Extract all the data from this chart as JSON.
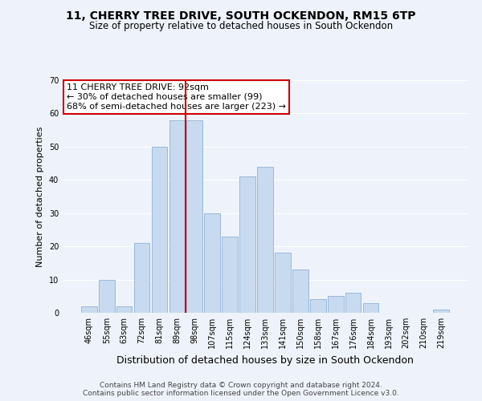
{
  "title": "11, CHERRY TREE DRIVE, SOUTH OCKENDON, RM15 6TP",
  "subtitle": "Size of property relative to detached houses in South Ockendon",
  "xlabel": "Distribution of detached houses by size in South Ockendon",
  "ylabel": "Number of detached properties",
  "bar_labels": [
    "46sqm",
    "55sqm",
    "63sqm",
    "72sqm",
    "81sqm",
    "89sqm",
    "98sqm",
    "107sqm",
    "115sqm",
    "124sqm",
    "133sqm",
    "141sqm",
    "150sqm",
    "158sqm",
    "167sqm",
    "176sqm",
    "184sqm",
    "193sqm",
    "202sqm",
    "210sqm",
    "219sqm"
  ],
  "bar_values": [
    2,
    10,
    2,
    21,
    50,
    58,
    58,
    30,
    23,
    41,
    44,
    18,
    13,
    4,
    5,
    6,
    3,
    0,
    0,
    0,
    1
  ],
  "bar_color": "#c8daf0",
  "bar_edge_color": "#9ab8d8",
  "vline_x": 5.5,
  "vline_color": "#cc0000",
  "ylim": [
    0,
    70
  ],
  "yticks": [
    0,
    10,
    20,
    30,
    40,
    50,
    60,
    70
  ],
  "annotation_line1": "11 CHERRY TREE DRIVE: 92sqm",
  "annotation_line2": "← 30% of detached houses are smaller (99)",
  "annotation_line3": "68% of semi-detached houses are larger (223) →",
  "annotation_box_facecolor": "#ffffff",
  "annotation_box_edgecolor": "#cc0000",
  "footer_line1": "Contains HM Land Registry data © Crown copyright and database right 2024.",
  "footer_line2": "Contains public sector information licensed under the Open Government Licence v3.0.",
  "background_color": "#eef3fb",
  "grid_color": "#ffffff",
  "title_fontsize": 10,
  "subtitle_fontsize": 8.5,
  "ylabel_fontsize": 8,
  "xlabel_fontsize": 9,
  "tick_fontsize": 7,
  "footer_fontsize": 6.5,
  "annot_fontsize": 8
}
